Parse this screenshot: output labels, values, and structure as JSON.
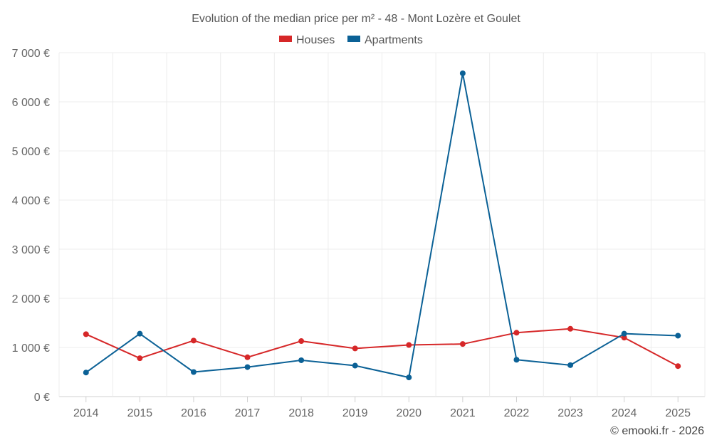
{
  "chart_data": {
    "type": "line",
    "title": "Evolution of the median price per m² - 48 - Mont Lozère et Goulet",
    "categories": [
      "2014",
      "2015",
      "2016",
      "2017",
      "2018",
      "2019",
      "2020",
      "2021",
      "2022",
      "2023",
      "2024",
      "2025"
    ],
    "series": [
      {
        "name": "Houses",
        "color": "#d62728",
        "values": [
          1270,
          780,
          1140,
          800,
          1130,
          980,
          1050,
          1070,
          1300,
          1380,
          1200,
          620
        ]
      },
      {
        "name": "Apartments",
        "color": "#0b6196",
        "values": [
          490,
          1280,
          500,
          600,
          740,
          630,
          390,
          6580,
          750,
          640,
          1280,
          1240
        ]
      }
    ],
    "yticks": [
      0,
      1000,
      2000,
      3000,
      4000,
      5000,
      6000,
      7000
    ],
    "ytick_labels": [
      "0 €",
      "1 000 €",
      "2 000 €",
      "3 000 €",
      "4 000 €",
      "5 000 €",
      "6 000 €",
      "7 000 €"
    ],
    "ylim": [
      0,
      7000
    ],
    "xlabel": "",
    "ylabel": "",
    "grid": true,
    "legend_position": "top-center"
  },
  "credit": "© emooki.fr - 2026"
}
